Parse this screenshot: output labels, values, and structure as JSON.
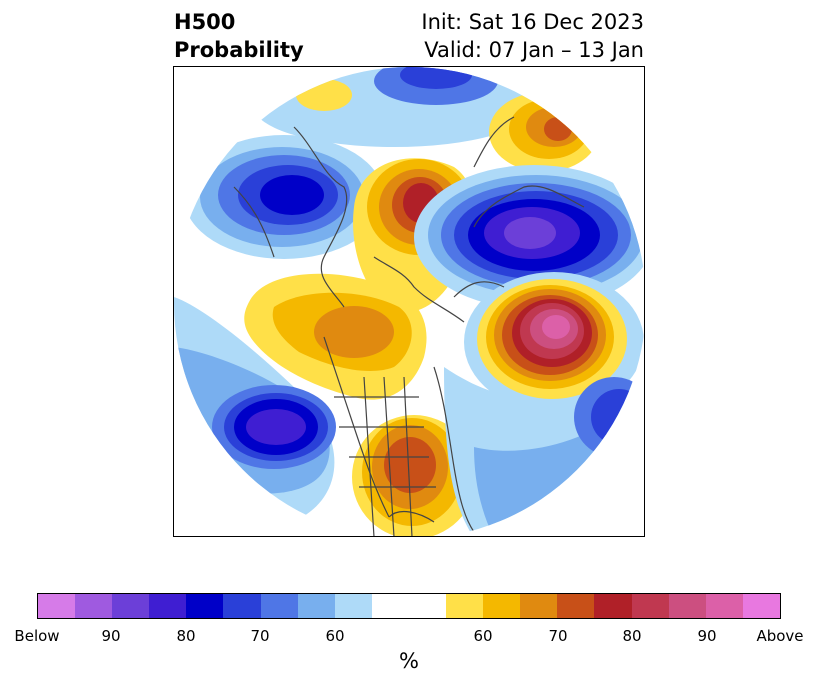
{
  "title": {
    "line1": "H500",
    "line2": "Probability"
  },
  "subtitle": {
    "init": "Init: Sat 16 Dec 2023",
    "valid": "Valid: 07 Jan – 13 Jan"
  },
  "colorbar": {
    "unit": "%",
    "colors": [
      "#d67be8",
      "#9f5ae0",
      "#6c3fd8",
      "#3f1ed2",
      "#0000c8",
      "#2a40d8",
      "#4f76e6",
      "#78afee",
      "#aedaf8",
      "#ffffff",
      "#ffe048",
      "#f4b800",
      "#e08a10",
      "#c85018",
      "#b02028",
      "#c03850",
      "#cc4f80",
      "#dc60a8",
      "#e878e0"
    ],
    "tick_labels": [
      "Below",
      "90",
      "80",
      "70",
      "60",
      "60",
      "70",
      "80",
      "90",
      "Above"
    ]
  },
  "map": {
    "description_none": "",
    "palette": {
      "below60": "#aedaf8",
      "below65": "#78afee",
      "below70": "#4f76e6",
      "below75": "#2a40d8",
      "below80": "#0000c8",
      "below85": "#3f1ed2",
      "below90": "#6c3fd8",
      "above60": "#ffe048",
      "above65": "#f4b800",
      "above70": "#e08a10",
      "above75": "#c85018",
      "above80": "#b02028",
      "above85": "#c03850",
      "above90": "#cc4f80",
      "above95": "#dc60a8",
      "coast": "#444444"
    }
  }
}
